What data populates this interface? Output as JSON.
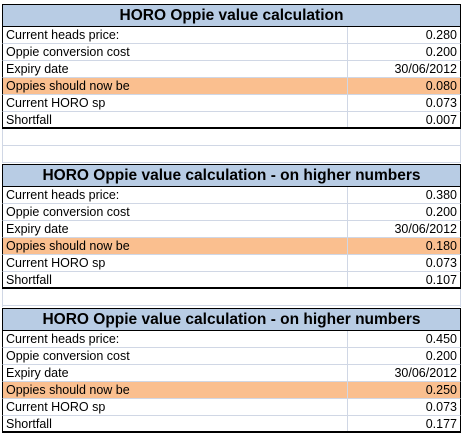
{
  "tables": [
    {
      "title": "HORO Oppie value calculation",
      "rows": [
        {
          "label": "Current heads price:",
          "value": "0.280"
        },
        {
          "label": "Oppie conversion cost",
          "value": "0.200"
        },
        {
          "label": "Expiry date",
          "value": "30/06/2012"
        },
        {
          "label": "Oppies should now be",
          "value": "0.080"
        },
        {
          "label": "Current HORO sp",
          "value": "0.073"
        },
        {
          "label": "Shortfall",
          "value": "0.007"
        }
      ]
    },
    {
      "title": "HORO Oppie value calculation - on higher numbers",
      "rows": [
        {
          "label": "Current heads price:",
          "value": "0.380"
        },
        {
          "label": "Oppie conversion cost",
          "value": "0.200"
        },
        {
          "label": "Expiry date",
          "value": "30/06/2012"
        },
        {
          "label": "Oppies should now be",
          "value": "0.180"
        },
        {
          "label": "Current HORO sp",
          "value": "0.073"
        },
        {
          "label": "Shortfall",
          "value": "0.107"
        }
      ]
    },
    {
      "title": "HORO Oppie value calculation - on higher numbers",
      "rows": [
        {
          "label": "Current heads price:",
          "value": "0.450"
        },
        {
          "label": "Oppie conversion cost",
          "value": "0.200"
        },
        {
          "label": "Expiry date",
          "value": "30/06/2012"
        },
        {
          "label": "Oppies should now be",
          "value": "0.250"
        },
        {
          "label": "Current HORO sp",
          "value": "0.073"
        },
        {
          "label": "Shortfall",
          "value": "0.177"
        }
      ]
    }
  ],
  "colors": {
    "header_bg": "#b8cce4",
    "highlight_bg": "#fabf8f",
    "gridline": "#d0d7e5"
  }
}
